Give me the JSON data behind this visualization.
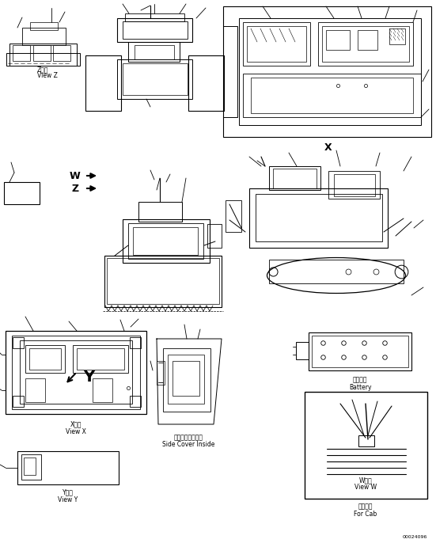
{
  "bg_color": "#ffffff",
  "line_color": "#000000",
  "fig_width": 5.51,
  "fig_height": 6.86,
  "dpi": 100,
  "labels": {
    "view_z_jp": "Z　視",
    "view_z_en": "View Z",
    "view_x_jp": "X　視",
    "view_x_en": "View X",
    "view_y_jp": "Y　視",
    "view_y_en": "View Y",
    "view_w_jp": "W　視",
    "view_w_en": "View W",
    "battery_jp": "バッテリ",
    "battery_en": "Battery",
    "side_cover_jp": "サイドカバー内側",
    "side_cover_en": "Side Cover Inside",
    "for_cab_jp": "キャブ用",
    "for_cab_en": "For Cab",
    "part_no": "00024096",
    "W_arrow": "W",
    "Z_arrow": "Z",
    "X_label": "X",
    "Y_label": "Y"
  },
  "font_size_label": 5.5,
  "font_size_part": 4.5,
  "font_size_WZ": 9,
  "font_size_XY": 9
}
